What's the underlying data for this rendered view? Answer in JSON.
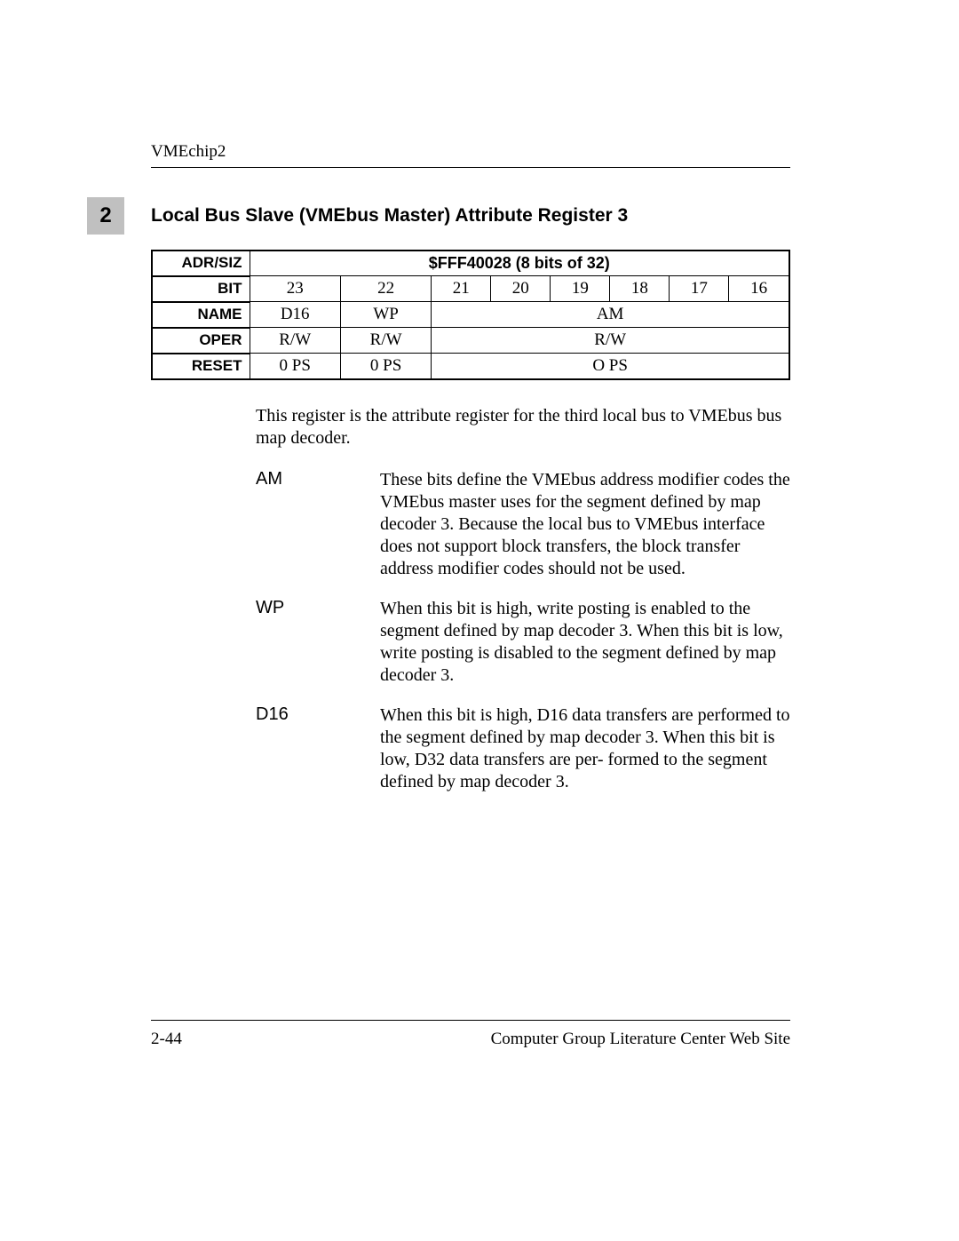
{
  "header": {
    "running": "VMEchip2"
  },
  "section": {
    "number": "2",
    "title": "Local Bus Slave (VMEbus Master) Attribute Register 3"
  },
  "table": {
    "row_labels": {
      "adr": "ADR/SIZ",
      "bit": "BIT",
      "name": "NAME",
      "oper": "OPER",
      "reset": "RESET"
    },
    "adr_value": "$FFF40028 (8 bits of 32)",
    "bits": [
      "23",
      "22",
      "21",
      "20",
      "19",
      "18",
      "17",
      "16"
    ],
    "name": {
      "c0": "D16",
      "c1": "WP",
      "merged": "AM"
    },
    "oper": {
      "c0": "R/W",
      "c1": "R/W",
      "merged": "R/W"
    },
    "reset": {
      "c0": "0 PS",
      "c1": "0 PS",
      "merged": "O PS"
    }
  },
  "intro": "This register is the attribute register for the third local bus to VMEbus bus map decoder.",
  "defs": [
    {
      "term": "AM",
      "desc": "These bits define the VMEbus address modifier codes the VMEbus master uses for the segment defined by map decoder 3. Because the local bus to VMEbus interface does not support block transfers, the block transfer address modifier codes should not be used."
    },
    {
      "term": "WP",
      "desc": "When this bit is high, write posting is enabled to the segment defined by map decoder 3. When this bit is low, write posting is disabled to the segment defined by map decoder 3."
    },
    {
      "term": "D16",
      "desc": "When this bit is high, D16 data transfers are performed to the segment defined by map decoder 3. When this bit is low, D32 data transfers are per- formed to the segment defined by map decoder 3."
    }
  ],
  "footer": {
    "left": "2-44",
    "right": "Computer Group Literature Center Web Site"
  },
  "colors": {
    "badge_bg": "#c0c0c0",
    "text": "#000000",
    "bg": "#ffffff"
  }
}
